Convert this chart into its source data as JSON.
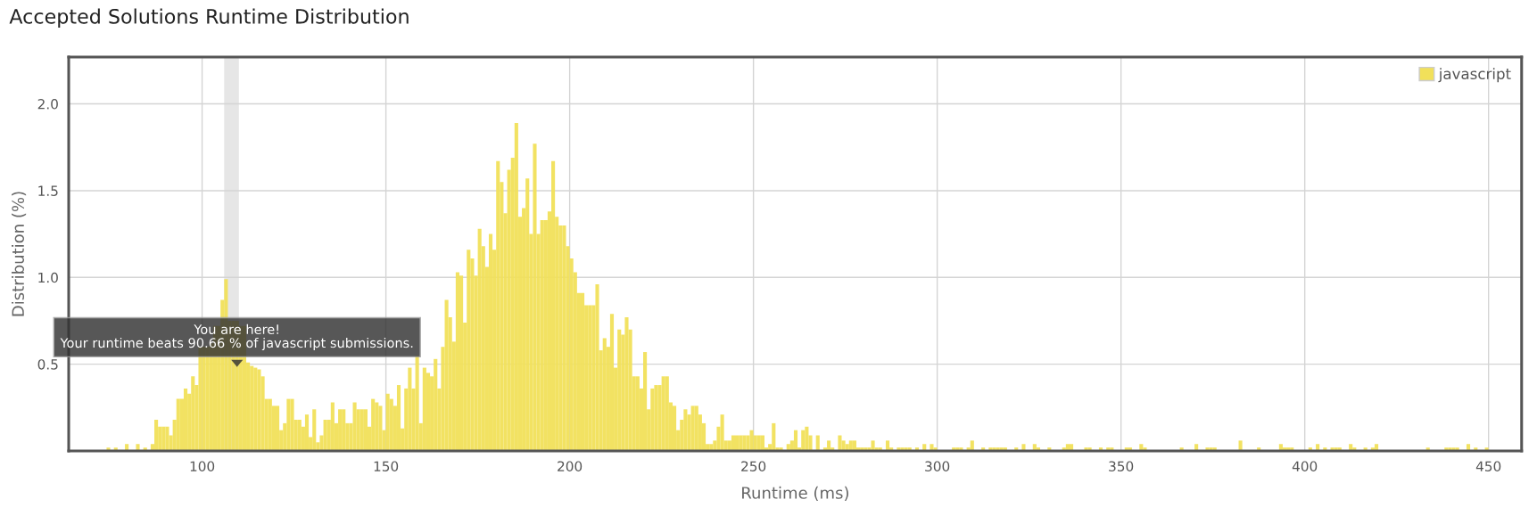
{
  "chart_data": {
    "type": "histogram",
    "title": "Accepted Solutions Runtime Distribution",
    "xlabel": "Runtime (ms)",
    "ylabel": "Distribution (%)",
    "series": [
      {
        "name": "javascript",
        "color": "#f1e05a",
        "values": [
          0.02,
          0,
          0.02,
          0,
          0,
          0.04,
          0,
          0,
          0.04,
          0,
          0.02,
          0,
          0.04,
          0.18,
          0.14,
          0.14,
          0.14,
          0.09,
          0.18,
          0.3,
          0.3,
          0.36,
          0.33,
          0.43,
          0.38,
          0.6,
          0.6,
          0.6,
          0.62,
          0.72,
          0.72,
          0.87,
          0.99,
          0.75,
          0.75,
          0.75,
          0.72,
          0.72,
          0.51,
          0.49,
          0.48,
          0.47,
          0.43,
          0.3,
          0.3,
          0.26,
          0.26,
          0.12,
          0.16,
          0.3,
          0.3,
          0.18,
          0.18,
          0.14,
          0.21,
          0.08,
          0.24,
          0.05,
          0.09,
          0.18,
          0.18,
          0.28,
          0.16,
          0.24,
          0.24,
          0.16,
          0.16,
          0.28,
          0.24,
          0.24,
          0.24,
          0.14,
          0.3,
          0.28,
          0.26,
          0.12,
          0.33,
          0.3,
          0.26,
          0.38,
          0.13,
          0.36,
          0.48,
          0.36,
          0.55,
          0.16,
          0.48,
          0.45,
          0.43,
          0.53,
          0.36,
          0.6,
          0.87,
          0.77,
          0.63,
          1.03,
          1.01,
          0.74,
          1.16,
          1.11,
          1.01,
          1.28,
          1.18,
          1.06,
          1.25,
          1.16,
          1.67,
          1.55,
          1.37,
          1.62,
          1.69,
          1.89,
          1.35,
          1.4,
          1.57,
          1.25,
          1.77,
          1.25,
          1.33,
          1.33,
          1.38,
          1.67,
          1.35,
          1.3,
          1.3,
          1.18,
          1.11,
          1.03,
          0.91,
          0.91,
          0.84,
          0.84,
          0.84,
          0.96,
          0.58,
          0.65,
          0.6,
          0.79,
          0.48,
          0.7,
          0.67,
          0.77,
          0.7,
          0.43,
          0.43,
          0.36,
          0.57,
          0.24,
          0.36,
          0.38,
          0.38,
          0.43,
          0.43,
          0.28,
          0.26,
          0.12,
          0.18,
          0.24,
          0.21,
          0.26,
          0.26,
          0.21,
          0.16,
          0.04,
          0.04,
          0.06,
          0.14,
          0.21,
          0.06,
          0.06,
          0.09,
          0.09,
          0.09,
          0.09,
          0.09,
          0.12,
          0.09,
          0.09,
          0.09,
          0.02,
          0.04,
          0.16,
          0.02,
          0.02,
          0,
          0.04,
          0.06,
          0.12,
          0.02,
          0.12,
          0.14,
          0.09,
          0,
          0.09,
          0,
          0.02,
          0.06,
          0.02,
          0,
          0.09,
          0.06,
          0.04,
          0.06,
          0.06,
          0.02,
          0.02,
          0.02,
          0.02,
          0.06,
          0.02,
          0.02,
          0,
          0.06,
          0.02,
          0,
          0.02,
          0.02,
          0.02,
          0.02,
          0,
          0.02,
          0,
          0.04,
          0,
          0.04,
          0.02,
          0,
          0,
          0,
          0,
          0.02,
          0.02,
          0.02,
          0,
          0.02,
          0.06,
          0,
          0,
          0.02,
          0,
          0.02,
          0.02,
          0.02,
          0.02,
          0.02,
          0,
          0,
          0.02,
          0,
          0.04,
          0,
          0,
          0.04,
          0.02,
          0,
          0,
          0.02,
          0,
          0,
          0,
          0.02,
          0.04,
          0.04,
          0,
          0,
          0,
          0.02,
          0.02,
          0,
          0,
          0.02,
          0,
          0.02,
          0.02,
          0,
          0,
          0,
          0.02,
          0.02,
          0,
          0,
          0.04,
          0.02,
          0,
          0,
          0,
          0,
          0,
          0,
          0,
          0,
          0,
          0.02,
          0,
          0,
          0,
          0.04,
          0,
          0,
          0.02,
          0.02,
          0.02,
          0,
          0,
          0,
          0,
          0,
          0,
          0.06,
          0,
          0,
          0,
          0,
          0.02,
          0,
          0,
          0,
          0,
          0,
          0.04,
          0.02,
          0.02,
          0.02,
          0,
          0,
          0,
          0,
          0.02,
          0,
          0.04,
          0,
          0.02,
          0,
          0.02,
          0.02,
          0.02,
          0,
          0,
          0.04,
          0.02,
          0,
          0,
          0.02,
          0,
          0.02,
          0.04,
          0,
          0,
          0,
          0,
          0,
          0,
          0,
          0,
          0,
          0,
          0,
          0,
          0,
          0.02,
          0,
          0,
          0,
          0,
          0.02,
          0.02,
          0.02,
          0.02,
          0,
          0,
          0.04,
          0,
          0.02,
          0,
          0,
          0.02
        ]
      }
    ],
    "bins": [
      74,
      75,
      76,
      77,
      78,
      79,
      80,
      81,
      82,
      83,
      84,
      85,
      86,
      87,
      88,
      89,
      90,
      91,
      92,
      93,
      94,
      95,
      96,
      97,
      98,
      99,
      100,
      101,
      102,
      103,
      104,
      105,
      106,
      107,
      108,
      109,
      110,
      111,
      112,
      113,
      114,
      115,
      116,
      117,
      118,
      119,
      120,
      121,
      122,
      123,
      124,
      125,
      126,
      127,
      128,
      129,
      130,
      131,
      132,
      133,
      134,
      135,
      136,
      137,
      138,
      139,
      140,
      141,
      142,
      143,
      144,
      145,
      146,
      147,
      148,
      149,
      150,
      151,
      152,
      153,
      154,
      155,
      156,
      157,
      158,
      159,
      160,
      161,
      162,
      163,
      164,
      165,
      166,
      167,
      168,
      169,
      170,
      171,
      172,
      173,
      174,
      175,
      176,
      177,
      178,
      179,
      180,
      181,
      182,
      183,
      184,
      185,
      186,
      187,
      188,
      189,
      190,
      191,
      192,
      193,
      194,
      195,
      196,
      197,
      198,
      199,
      200,
      201,
      202,
      203,
      204,
      205,
      206,
      207,
      208,
      209,
      210,
      211,
      212,
      213,
      214,
      215,
      216,
      217,
      218,
      219,
      220,
      221,
      222,
      223,
      224,
      225,
      226,
      227,
      228,
      229,
      230,
      231,
      232,
      233,
      234,
      235,
      236,
      237,
      238,
      239,
      240,
      241,
      242,
      243,
      244,
      245,
      246,
      247,
      248,
      249,
      250,
      251,
      252,
      253,
      254,
      255,
      256,
      257,
      258,
      259,
      260,
      261,
      262,
      263,
      264,
      265,
      266,
      267,
      268,
      269,
      270,
      271,
      272,
      273,
      274,
      275,
      276,
      277,
      278,
      279,
      280,
      281,
      282,
      283,
      284,
      285,
      286,
      287,
      288,
      289,
      290,
      291,
      292,
      293,
      294,
      295,
      296,
      297,
      298,
      299,
      300,
      301,
      302,
      303,
      304,
      305,
      306,
      307,
      308,
      309,
      310,
      311,
      312,
      313,
      314,
      315,
      316,
      317,
      318,
      319,
      320,
      321,
      322,
      323,
      324,
      325,
      326,
      327,
      328,
      329,
      330,
      331,
      332,
      333,
      334,
      335,
      336,
      337,
      338,
      339,
      340,
      341,
      342,
      343,
      344,
      345,
      346,
      347,
      348,
      349,
      350,
      351,
      352,
      353,
      354,
      355,
      356,
      357,
      358,
      359,
      360,
      361,
      362,
      363,
      364,
      365,
      366,
      367,
      368,
      369,
      370,
      371,
      372,
      373,
      374,
      375,
      376,
      377,
      378,
      379,
      380,
      381,
      382,
      383,
      384,
      385,
      386,
      387,
      388,
      389,
      390,
      391,
      392,
      393,
      394,
      395,
      396,
      397,
      398,
      399,
      400,
      401,
      402,
      403,
      404,
      405,
      406,
      407,
      408,
      409,
      410,
      411,
      412,
      413,
      414,
      415,
      416,
      417,
      418,
      419,
      420,
      421,
      422,
      423,
      424,
      425,
      426,
      427,
      428,
      429,
      430,
      431,
      432,
      433,
      434,
      435,
      436,
      437,
      438,
      439,
      440,
      441,
      442,
      443,
      444,
      445,
      446,
      447,
      448,
      449,
      450
    ],
    "xlim": [
      63.7,
      459
    ],
    "xticks": [
      100,
      150,
      200,
      250,
      300,
      350,
      400,
      450
    ],
    "ylim": [
      0,
      2.27
    ],
    "yticks": [
      {
        "value": 0.5,
        "label": "0.5"
      },
      {
        "value": 1,
        "label": "1.0"
      },
      {
        "value": 1.5,
        "label": "1.5"
      },
      {
        "value": 2,
        "label": "2.0"
      }
    ],
    "bands": [
      {
        "axis": "x",
        "from": 106,
        "to": 110,
        "color": "#e6e6e6"
      }
    ],
    "annotations": [
      {
        "text": "You are here!\nYour runtime beats 90.66 % of javascript submissions.",
        "x": 109.5,
        "y": 0.47
      }
    ],
    "grid": true,
    "legend": "top right"
  }
}
